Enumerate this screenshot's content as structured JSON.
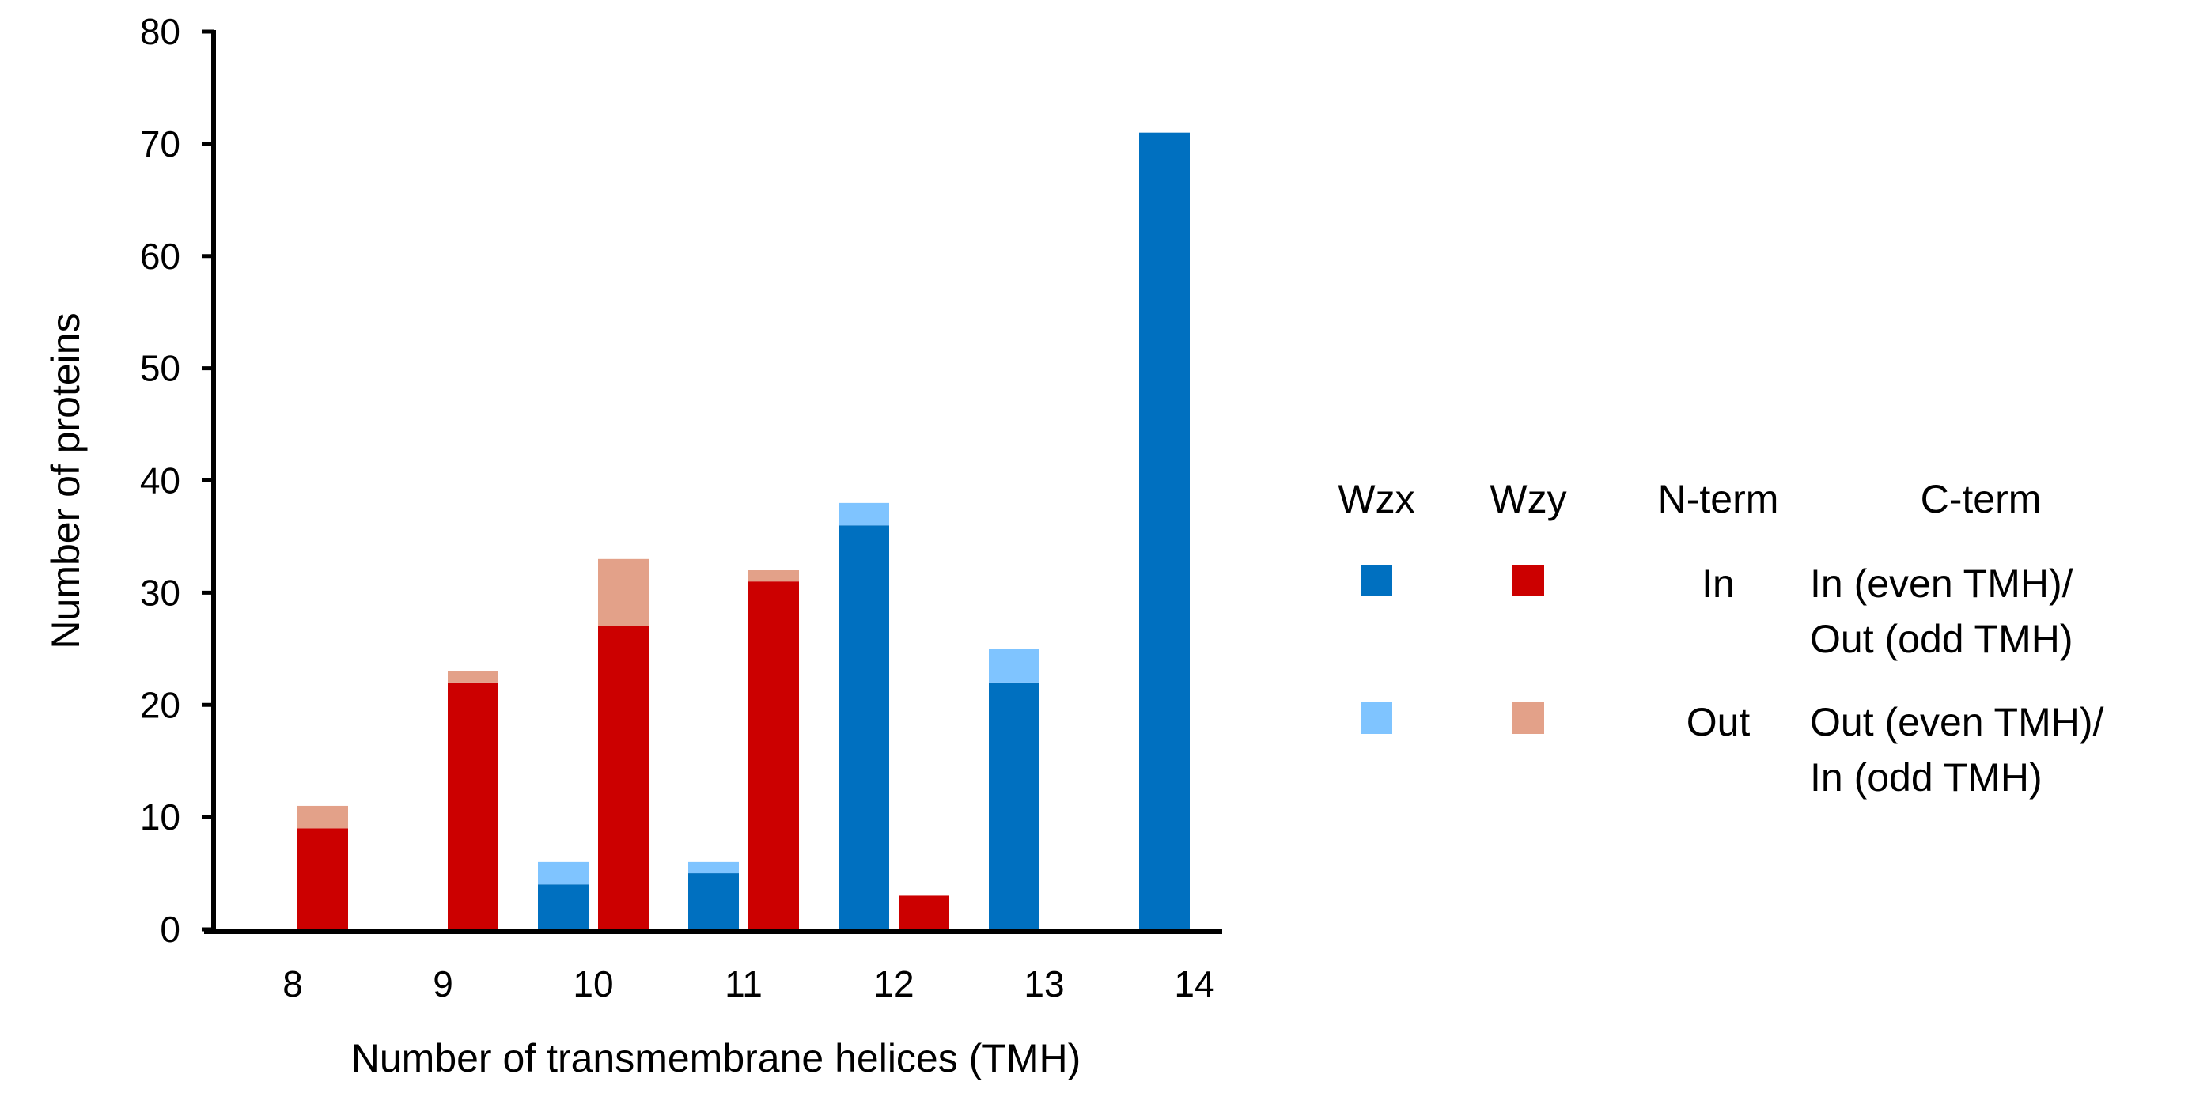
{
  "chart_data": {
    "type": "bar",
    "stacked": true,
    "categories": [
      "8",
      "9",
      "10",
      "11",
      "12",
      "13",
      "14"
    ],
    "xlabel": "Number of transmembrane helices (TMH)",
    "ylabel": "Number of proteins",
    "ylim": [
      0,
      80
    ],
    "yticks": [
      "0",
      "10",
      "20",
      "30",
      "40",
      "50",
      "60",
      "70",
      "80"
    ],
    "grid": false,
    "groups": [
      {
        "name": "Wzx",
        "series": [
          {
            "key": "wzx_in",
            "color": "#0070c0",
            "values": [
              0,
              0,
              4,
              5,
              36,
              22,
              71
            ]
          },
          {
            "key": "wzx_out",
            "color": "#7fc4ff",
            "values": [
              0,
              0,
              2,
              1,
              2,
              3,
              0
            ]
          }
        ]
      },
      {
        "name": "Wzy",
        "series": [
          {
            "key": "wzy_in",
            "color": "#cc0000",
            "values": [
              9,
              22,
              27,
              31,
              3,
              0,
              0
            ]
          },
          {
            "key": "wzy_out",
            "color": "#e3a189",
            "values": [
              2,
              1,
              6,
              1,
              0,
              0,
              0
            ]
          }
        ]
      }
    ],
    "legend": {
      "placement": "right",
      "headers": {
        "wzx": "Wzx",
        "wzy": "Wzy",
        "nterm": "N-term",
        "cterm": "C-term"
      },
      "rows": [
        {
          "wzx_color": "#0070c0",
          "wzy_color": "#cc0000",
          "nterm": "In",
          "cterm_line1": "In (even TMH)/",
          "cterm_line2": "Out (odd TMH)"
        },
        {
          "wzx_color": "#7fc4ff",
          "wzy_color": "#e3a189",
          "nterm": "Out",
          "cterm_line1": "Out (even TMH)/",
          "cterm_line2": "In (odd TMH)"
        }
      ]
    }
  }
}
